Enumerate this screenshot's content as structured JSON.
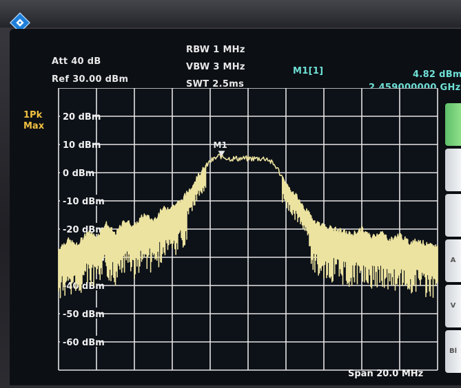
{
  "header": {
    "att": "Att  40 dB",
    "ref": "Ref  30.00 dBm",
    "rbw": "RBW  1 MHz",
    "vbw": "VBW  3 MHz",
    "swt": "SWT  2.5ms",
    "marker_name": "M1[1]",
    "marker_level": "4.82 dBm",
    "marker_freq": "2.459000000 GHz"
  },
  "trace": {
    "line1": "1Pk",
    "line2": "Max"
  },
  "plot": {
    "y_labels": [
      "20 dBm",
      "10 dBm",
      "0 dBm",
      "-10 dBm",
      "-20 dBm",
      "-30 dBm",
      "-40 dBm",
      "-50 dBm",
      "-60 dBm"
    ],
    "marker_label": "M1",
    "span": "Span 20.0 MHz",
    "colors": {
      "grid": "#e6e6e6",
      "trace": "#ece3a0",
      "trace_left": "#e6d8c4",
      "marker": "#e8e8e8"
    }
  },
  "side_buttons": [
    "",
    "",
    "",
    "A",
    "V",
    "Bl"
  ],
  "chart_data": {
    "type": "line",
    "x": [
      -10,
      -9.5,
      -9,
      -8.5,
      -8,
      -7.5,
      -7,
      -6.5,
      -6,
      -5.5,
      -5,
      -4.5,
      -4,
      -3.5,
      -3,
      -2.5,
      -2,
      -1.5,
      -1,
      -0.5,
      0,
      0.5,
      1,
      1.5,
      2,
      2.5,
      3,
      3.5,
      4,
      4.5,
      5,
      5.5,
      6,
      6.5,
      7,
      7.5,
      8,
      8.5,
      9,
      9.5,
      10
    ],
    "values": [
      -28,
      -25,
      -27,
      -22,
      -24,
      -19,
      -23,
      -18,
      -20,
      -16,
      -18,
      -14,
      -13,
      -11,
      -6,
      -1,
      3,
      5,
      4,
      4,
      4,
      4,
      4,
      1,
      -5,
      -9,
      -14,
      -18,
      -20,
      -21,
      -22,
      -23,
      -21,
      -24,
      -22,
      -25,
      -23,
      -26,
      -25,
      -27,
      -27
    ],
    "ylim": [
      -70,
      30
    ],
    "marker": {
      "x": -1.4,
      "y": 4.82
    }
  }
}
